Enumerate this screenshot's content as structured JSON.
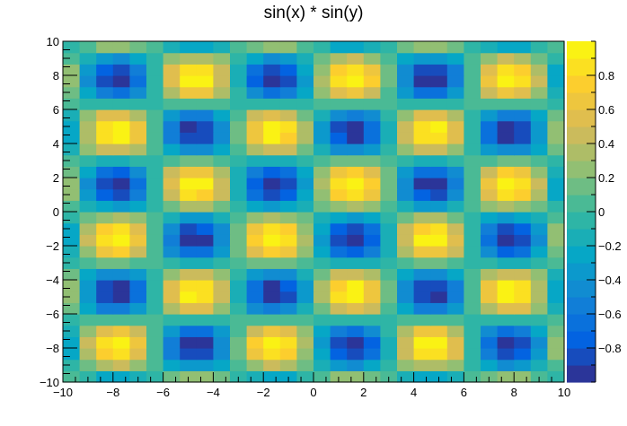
{
  "chart_data": {
    "type": "heatmap",
    "title": "sin(x) * sin(y)",
    "function": "sin(x) * sin(y)",
    "xlabel": "",
    "ylabel": "",
    "xlim": [
      -10,
      10
    ],
    "ylim": [
      -10,
      10
    ],
    "bins_x": 30,
    "bins_y": 30,
    "z_range": [
      -1,
      1
    ],
    "x_ticks": [
      -10,
      -8,
      -6,
      -4,
      -2,
      0,
      2,
      4,
      6,
      8,
      10
    ],
    "y_ticks": [
      -10,
      -8,
      -6,
      -4,
      -2,
      0,
      2,
      4,
      6,
      8,
      10
    ],
    "colorbar_ticks": [
      -0.8,
      -0.6,
      -0.4,
      -0.2,
      0,
      0.2,
      0.4,
      0.6,
      0.8
    ],
    "colorbar_levels": 20,
    "palette": [
      "#352a87",
      "#0363e1",
      "#1485d4",
      "#06a7c6",
      "#38b99e",
      "#92bf73",
      "#d9ba56",
      "#fcce2e",
      "#f9fb0e"
    ],
    "grid": false,
    "legend": "none"
  }
}
